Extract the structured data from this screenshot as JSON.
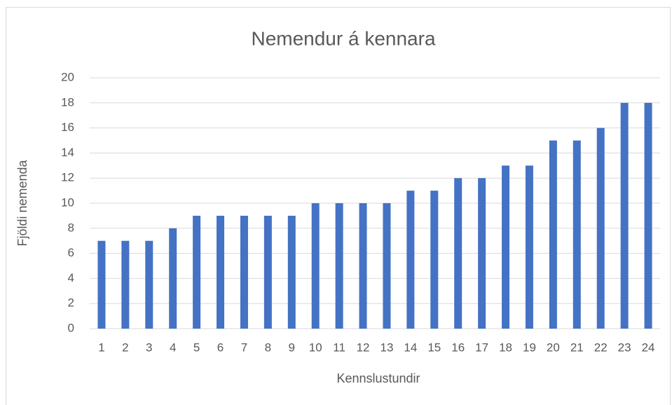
{
  "chart_data": {
    "type": "bar",
    "title": "Nemendur á kennara",
    "x_label": "Kennslustundir",
    "y_label": "Fjöldi nemenda",
    "categories": [
      "1",
      "2",
      "3",
      "4",
      "5",
      "6",
      "7",
      "8",
      "9",
      "10",
      "11",
      "12",
      "13",
      "14",
      "15",
      "16",
      "17",
      "18",
      "19",
      "20",
      "21",
      "22",
      "23",
      "24"
    ],
    "values": [
      7,
      7,
      7,
      8,
      9,
      9,
      9,
      9,
      9,
      10,
      10,
      10,
      10,
      11,
      11,
      12,
      12,
      13,
      13,
      15,
      15,
      16,
      18,
      18
    ],
    "color": "#4472c4",
    "ylim": [
      0,
      20
    ],
    "yticks": [
      0,
      2,
      4,
      6,
      8,
      10,
      12,
      14,
      16,
      18,
      20
    ],
    "grid": true
  }
}
